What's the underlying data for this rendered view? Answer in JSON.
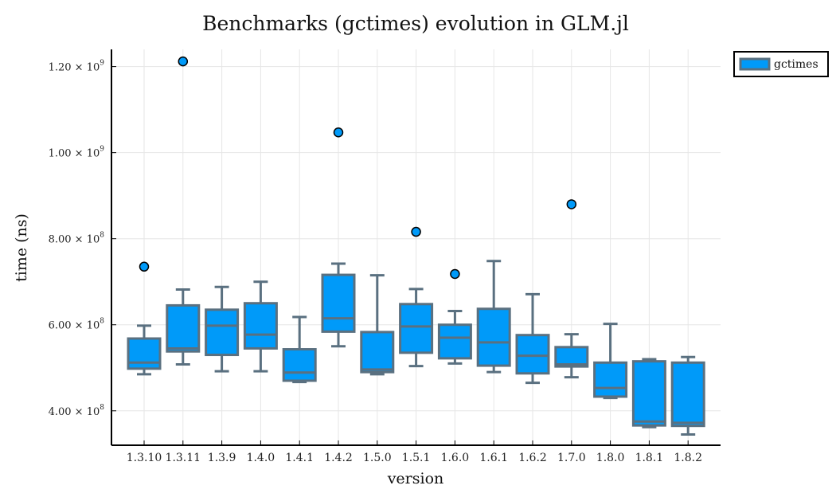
{
  "chart_data": {
    "type": "box",
    "title": "Benchmarks (gctimes) evolution in GLM.jl",
    "xlabel": "version",
    "ylabel": "time (ns)",
    "ylim": [
      320000000,
      1240000000
    ],
    "yticks": [
      {
        "value": 400000000,
        "mantissa": "4.00",
        "base": "10",
        "exp": "8"
      },
      {
        "value": 600000000,
        "mantissa": "6.00",
        "base": "10",
        "exp": "8"
      },
      {
        "value": 800000000,
        "mantissa": "8.00",
        "base": "10",
        "exp": "8"
      },
      {
        "value": 1000000000,
        "mantissa": "1.00",
        "base": "10",
        "exp": "9"
      },
      {
        "value": 1200000000,
        "mantissa": "1.20",
        "base": "10",
        "exp": "9"
      }
    ],
    "grid": true,
    "legend_position": "outside-top-right",
    "colors": {
      "fill": "#009af9",
      "stroke": "#5a7080",
      "grid": "#e6e6e6",
      "axis": "#000000"
    },
    "series": [
      {
        "name": "gctimes",
        "boxes": [
          {
            "category": "1.3.10",
            "whisker_low": 485000000,
            "q1": 498000000,
            "median": 512000000,
            "q3": 568000000,
            "whisker_high": 598000000,
            "outliers": [
              735000000
            ]
          },
          {
            "category": "1.3.11",
            "whisker_low": 508000000,
            "q1": 538000000,
            "median": 545000000,
            "q3": 645000000,
            "whisker_high": 682000000,
            "outliers": [
              1212000000
            ]
          },
          {
            "category": "1.3.9",
            "whisker_low": 492000000,
            "q1": 530000000,
            "median": 598000000,
            "q3": 635000000,
            "whisker_high": 688000000,
            "outliers": []
          },
          {
            "category": "1.4.0",
            "whisker_low": 492000000,
            "q1": 545000000,
            "median": 577000000,
            "q3": 650000000,
            "whisker_high": 700000000,
            "outliers": []
          },
          {
            "category": "1.4.1",
            "whisker_low": 467000000,
            "q1": 470000000,
            "median": 489000000,
            "q3": 543000000,
            "whisker_high": 618000000,
            "outliers": []
          },
          {
            "category": "1.4.2",
            "whisker_low": 550000000,
            "q1": 584000000,
            "median": 615000000,
            "q3": 716000000,
            "whisker_high": 742000000,
            "outliers": [
              1047000000
            ]
          },
          {
            "category": "1.5.0",
            "whisker_low": 485000000,
            "q1": 490000000,
            "median": 496000000,
            "q3": 583000000,
            "whisker_high": 715000000,
            "outliers": []
          },
          {
            "category": "1.5.1",
            "whisker_low": 504000000,
            "q1": 535000000,
            "median": 596000000,
            "q3": 648000000,
            "whisker_high": 683000000,
            "outliers": [
              816000000
            ]
          },
          {
            "category": "1.6.0",
            "whisker_low": 510000000,
            "q1": 522000000,
            "median": 570000000,
            "q3": 600000000,
            "whisker_high": 632000000,
            "outliers": [
              718000000
            ]
          },
          {
            "category": "1.6.1",
            "whisker_low": 490000000,
            "q1": 505000000,
            "median": 559000000,
            "q3": 637000000,
            "whisker_high": 748000000,
            "outliers": []
          },
          {
            "category": "1.6.2",
            "whisker_low": 465000000,
            "q1": 487000000,
            "median": 528000000,
            "q3": 576000000,
            "whisker_high": 671000000,
            "outliers": []
          },
          {
            "category": "1.7.0",
            "whisker_low": 478000000,
            "q1": 503000000,
            "median": 508000000,
            "q3": 548000000,
            "whisker_high": 578000000,
            "outliers": [
              880000000
            ]
          },
          {
            "category": "1.8.0",
            "whisker_low": 430000000,
            "q1": 433000000,
            "median": 453000000,
            "q3": 512000000,
            "whisker_high": 602000000,
            "outliers": []
          },
          {
            "category": "1.8.1",
            "whisker_low": 362000000,
            "q1": 366000000,
            "median": 375000000,
            "q3": 515000000,
            "whisker_high": 520000000,
            "outliers": []
          },
          {
            "category": "1.8.2",
            "whisker_low": 345000000,
            "q1": 365000000,
            "median": 372000000,
            "q3": 512000000,
            "whisker_high": 525000000,
            "outliers": []
          }
        ]
      }
    ]
  }
}
